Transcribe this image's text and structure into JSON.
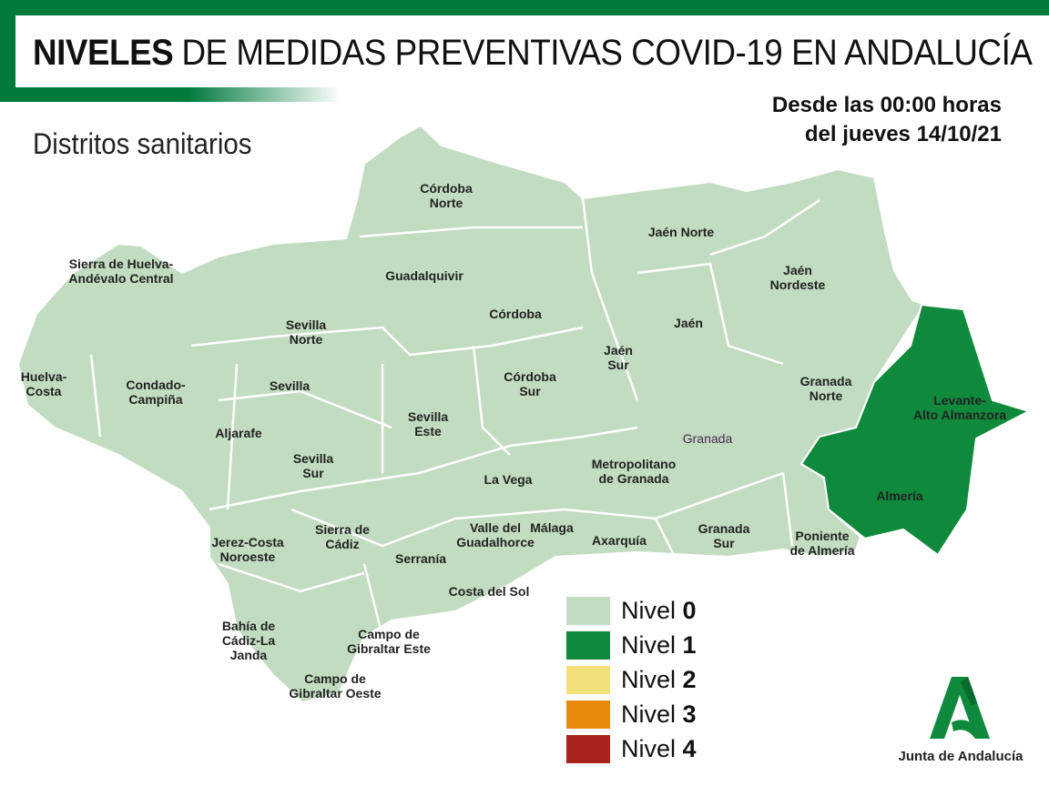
{
  "header": {
    "title_bold": "NIVELES",
    "title_rest": "DE MEDIDAS PREVENTIVAS COVID-19 EN ANDALUCÍA",
    "subtitle": "Distritos sanitarios",
    "date_line1": "Desde las 00:00 horas",
    "date_line2": "del jueves 14/10/21"
  },
  "colors": {
    "nivel_0": "#c2dcc1",
    "nivel_1": "#0f8a3c",
    "nivel_2": "#f2e07a",
    "nivel_3": "#e88a0c",
    "nivel_4": "#a8231c",
    "brand": "#007a3d"
  },
  "districts": [
    {
      "name": "Córdoba Norte",
      "level": 0
    },
    {
      "name": "Jaén Norte",
      "level": 0
    },
    {
      "name": "Sierra de Huelva-Andévalo Central",
      "level": 0
    },
    {
      "name": "Guadalquivir",
      "level": 0
    },
    {
      "name": "Jaén Nordeste",
      "level": 0
    },
    {
      "name": "Córdoba",
      "level": 0
    },
    {
      "name": "Jaén",
      "level": 0
    },
    {
      "name": "Sevilla Norte",
      "level": 0
    },
    {
      "name": "Jaén Sur",
      "level": 0
    },
    {
      "name": "Huelva-Costa",
      "level": 0
    },
    {
      "name": "Condado-Campiña",
      "level": 0
    },
    {
      "name": "Sevilla",
      "level": 0
    },
    {
      "name": "Córdoba Sur",
      "level": 0
    },
    {
      "name": "Granada Norte",
      "level": 0
    },
    {
      "name": "Levante-Alto Almanzora",
      "level": 1
    },
    {
      "name": "Sevilla Este",
      "level": 0
    },
    {
      "name": "Aljarafe",
      "level": 0
    },
    {
      "name": "Sevilla Sur",
      "level": 0
    },
    {
      "name": "La Vega",
      "level": 0
    },
    {
      "name": "Metropolitano de Granada",
      "level": 0
    },
    {
      "name": "Almería",
      "level": 1
    },
    {
      "name": "Jerez-Costa Noroeste",
      "level": 0
    },
    {
      "name": "Sierra de Cádiz",
      "level": 0
    },
    {
      "name": "Valle del Guadalhorce",
      "level": 0
    },
    {
      "name": "Málaga",
      "level": 0
    },
    {
      "name": "Axarquía",
      "level": 0
    },
    {
      "name": "Granada Sur",
      "level": 0
    },
    {
      "name": "Poniente de Almería",
      "level": 0
    },
    {
      "name": "Serranía",
      "level": 0
    },
    {
      "name": "Costa del Sol",
      "level": 0
    },
    {
      "name": "Bahía de Cádiz-La Janda",
      "level": 0
    },
    {
      "name": "Campo de Gibraltar Este",
      "level": 0
    },
    {
      "name": "Campo de Gibraltar Oeste",
      "level": 0
    }
  ],
  "labels": {
    "cordoba_norte": [
      "Córdoba",
      "Norte"
    ],
    "jaen_norte": [
      "Jaén Norte"
    ],
    "sierra_huelva": [
      "Sierra de Huelva-",
      "Andévalo Central"
    ],
    "guadalquivir": [
      "Guadalquivir"
    ],
    "jaen_nordeste": [
      "Jaén",
      "Nordeste"
    ],
    "cordoba": [
      "Córdoba"
    ],
    "jaen": [
      "Jaén"
    ],
    "sevilla_norte": [
      "Sevilla",
      "Norte"
    ],
    "jaen_sur": [
      "Jaén",
      "Sur"
    ],
    "huelva_costa": [
      "Huelva-",
      "Costa"
    ],
    "condado": [
      "Condado-",
      "Campiña"
    ],
    "sevilla": [
      "Sevilla"
    ],
    "cordoba_sur": [
      "Córdoba",
      "Sur"
    ],
    "granada_norte": [
      "Granada",
      "Norte"
    ],
    "levante": [
      "Levante-",
      "Alto Almanzora"
    ],
    "sevilla_este": [
      "Sevilla",
      "Este"
    ],
    "aljarafe": [
      "Aljarafe"
    ],
    "sevilla_sur": [
      "Sevilla",
      "Sur"
    ],
    "la_vega": [
      "La Vega"
    ],
    "metro_granada": [
      "Metropolitano",
      "de Granada"
    ],
    "granada_city": [
      "Granada"
    ],
    "almeria": [
      "Almería"
    ],
    "jerez": [
      "Jerez-Costa",
      "Noroeste"
    ],
    "sierra_cadiz": [
      "Sierra de",
      "Cádiz"
    ],
    "valle": [
      "Valle del",
      "Guadalhorce"
    ],
    "malaga": [
      "Málaga"
    ],
    "axarquia": [
      "Axarquía"
    ],
    "granada_sur": [
      "Granada",
      "Sur"
    ],
    "poniente": [
      "Poniente",
      "de Almería"
    ],
    "serrania": [
      "Serranía"
    ],
    "costa_sol": [
      "Costa del Sol"
    ],
    "bahia": [
      "Bahía de",
      "Cádiz-La",
      "Janda"
    ],
    "cg_este": [
      "Campo de",
      "Gibraltar Este"
    ],
    "cg_oeste": [
      "Campo de",
      "Gibraltar Oeste"
    ]
  },
  "legend": [
    {
      "prefix": "Nivel",
      "value": "0",
      "color": "#c2dcc1"
    },
    {
      "prefix": "Nivel",
      "value": "1",
      "color": "#0f8a3c"
    },
    {
      "prefix": "Nivel",
      "value": "2",
      "color": "#f2e07a"
    },
    {
      "prefix": "Nivel",
      "value": "3",
      "color": "#e88a0c"
    },
    {
      "prefix": "Nivel",
      "value": "4",
      "color": "#a8231c"
    }
  ],
  "logo": {
    "name": "Junta de Andalucía",
    "icon": "junta-andalucia-a-logo"
  }
}
